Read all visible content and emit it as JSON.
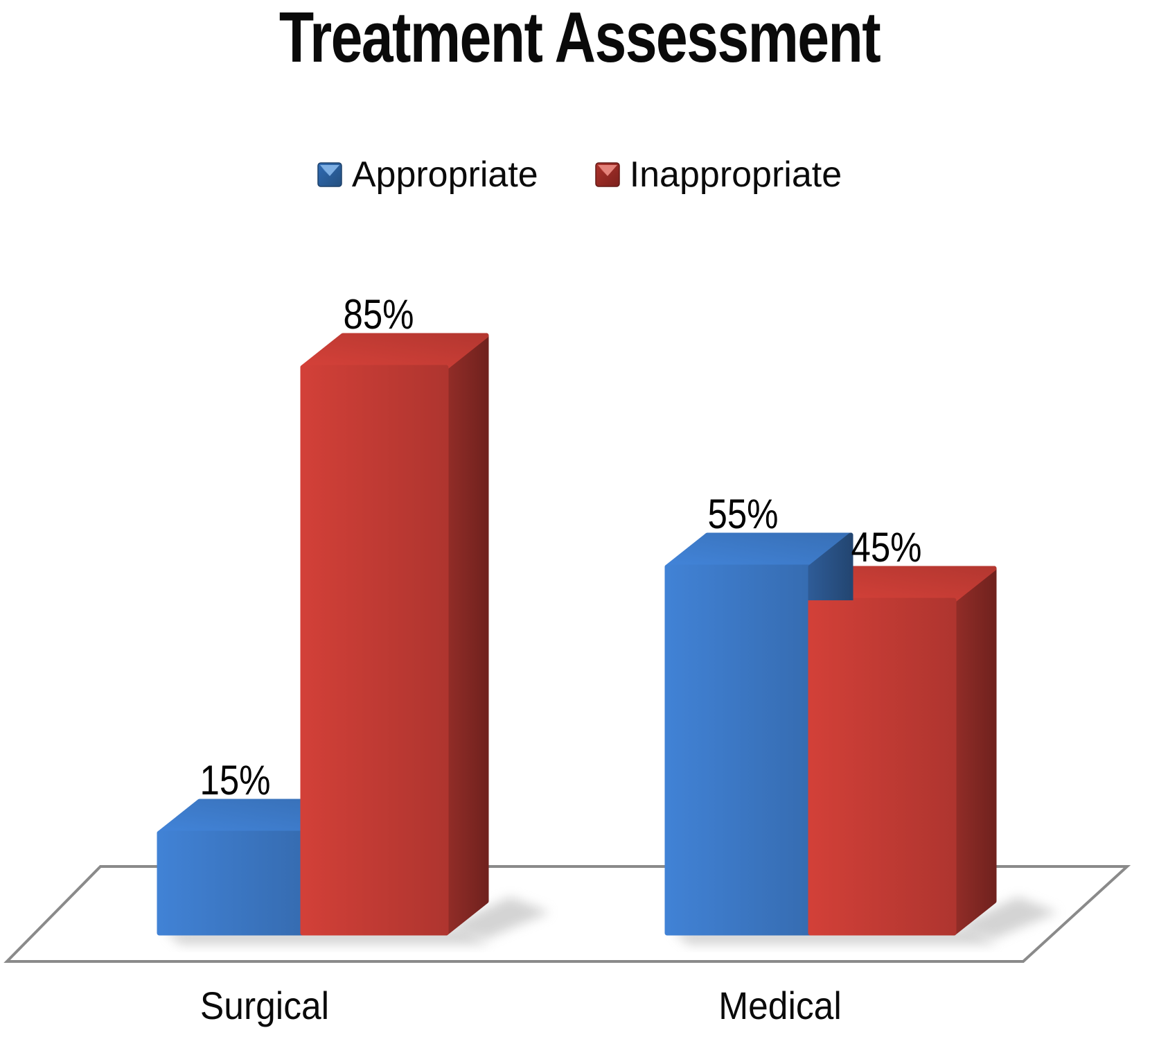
{
  "chart_data": {
    "type": "bar",
    "effect_3d": true,
    "title": "Treatment Assessment",
    "categories": [
      "Surgical",
      "Medical"
    ],
    "series": [
      {
        "name": "Appropriate",
        "color": "#3C78C5",
        "values": [
          15,
          55
        ],
        "data_labels": [
          "15%",
          "55%"
        ]
      },
      {
        "name": "Inappropriate",
        "color": "#C23B34",
        "values": [
          85,
          45
        ],
        "data_labels": [
          "85%",
          "45%"
        ]
      }
    ],
    "value_unit": "%",
    "ylim": [
      0,
      100
    ],
    "axes_visible": false,
    "gridlines_visible": false,
    "legend_position": "top",
    "floor": {
      "visible": true,
      "outline_color": "#8a8a8a",
      "fill": "#ffffff"
    },
    "label_color": "#000000",
    "title_color": "#0a0a0a",
    "background": "#ffffff"
  }
}
